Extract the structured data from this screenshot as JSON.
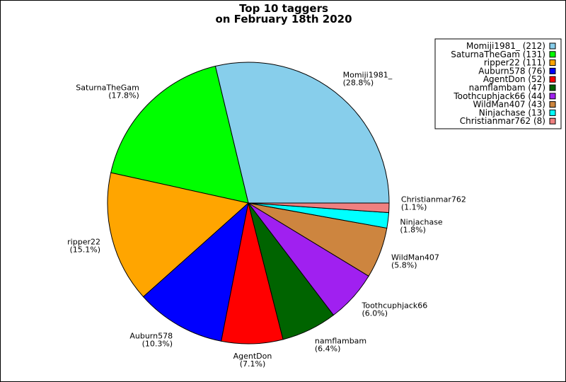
{
  "chart_data": {
    "type": "pie",
    "title": [
      "Top 10 taggers",
      "on February 18th 2020"
    ],
    "legend_position": "top-right",
    "slices": [
      {
        "name": "Momiji1981_",
        "value": 212,
        "percent_label": "(28.8%)",
        "legend_label": "Momiji1981_ (212)",
        "color": "#87CEEB"
      },
      {
        "name": "SaturnaTheGam",
        "value": 131,
        "percent_label": "(17.8%)",
        "legend_label": "SaturnaTheGam (131)",
        "color": "#00FF00"
      },
      {
        "name": "ripper22",
        "value": 111,
        "percent_label": "(15.1%)",
        "legend_label": "ripper22 (111)",
        "color": "#FFA500"
      },
      {
        "name": "Auburn578",
        "value": 76,
        "percent_label": "(10.3%)",
        "legend_label": "Auburn578 (76)",
        "color": "#0000FF"
      },
      {
        "name": "AgentDon",
        "value": 52,
        "percent_label": "(7.1%)",
        "legend_label": "AgentDon (52)",
        "color": "#FF0000"
      },
      {
        "name": "namflambam",
        "value": 47,
        "percent_label": "(6.4%)",
        "legend_label": "namflambam (47)",
        "color": "#006400"
      },
      {
        "name": "Toothcuphjack66",
        "value": 44,
        "percent_label": "(6.0%)",
        "legend_label": "Toothcuphjack66 (44)",
        "color": "#A020F0"
      },
      {
        "name": "WildMan407",
        "value": 43,
        "percent_label": "(5.8%)",
        "legend_label": "WildMan407 (43)",
        "color": "#CD853F"
      },
      {
        "name": "Ninjachase",
        "value": 13,
        "percent_label": "(1.8%)",
        "legend_label": "Ninjachase (13)",
        "color": "#00FFFF"
      },
      {
        "name": "Christianmar762",
        "value": 8,
        "percent_label": "(1.1%)",
        "legend_label": "Christianmar762 (8)",
        "color": "#F08080"
      }
    ]
  }
}
